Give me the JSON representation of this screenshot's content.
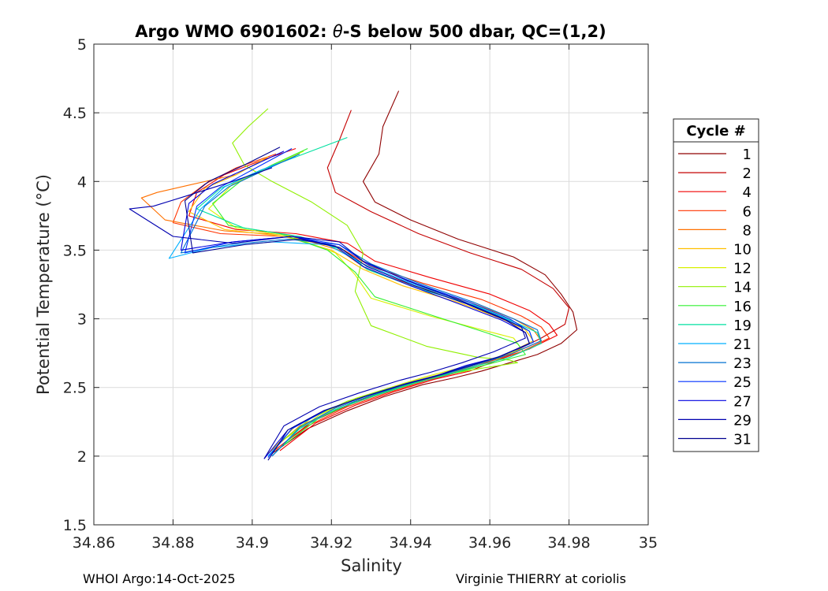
{
  "chart_data": {
    "type": "line",
    "title_prefix": "Argo WMO 6901602: ",
    "title_symbol": "θ",
    "title_suffix": "-S below 500 dbar,  QC=(1,2)",
    "xlabel": "Salinity",
    "ylabel": "Potential Temperature (°C)",
    "xlim": [
      34.86,
      35.0
    ],
    "ylim": [
      1.5,
      5.0
    ],
    "xticks": [
      "34.86",
      "34.88",
      "34.9",
      "34.92",
      "34.94",
      "34.96",
      "34.98",
      "35"
    ],
    "yticks": [
      "1.5",
      "2",
      "2.5",
      "3",
      "3.5",
      "4",
      "4.5",
      "5"
    ],
    "grid": true,
    "legend_title": "Cycle #",
    "legend_position": "right",
    "series": [
      {
        "name": "1",
        "color": "#8f0000",
        "x": [
          34.937,
          34.933,
          34.932,
          34.928,
          34.931,
          34.94,
          34.952,
          34.966,
          34.974,
          34.978,
          34.981,
          34.982,
          34.978,
          34.972,
          34.965,
          34.958,
          34.951,
          34.943,
          34.933,
          34.924,
          34.914,
          34.905
        ],
        "y": [
          4.66,
          4.4,
          4.2,
          4.0,
          3.85,
          3.72,
          3.58,
          3.45,
          3.32,
          3.18,
          3.05,
          2.92,
          2.82,
          2.74,
          2.68,
          2.62,
          2.57,
          2.52,
          2.43,
          2.33,
          2.2,
          2.02
        ]
      },
      {
        "name": "2",
        "color": "#c40000",
        "x": [
          34.925,
          34.922,
          34.919,
          34.921,
          34.93,
          34.942,
          34.955,
          34.968,
          34.976,
          34.98,
          34.979,
          34.973,
          34.966,
          34.959,
          34.952,
          34.944,
          34.934,
          34.925,
          34.915,
          34.906
        ],
        "y": [
          4.52,
          4.3,
          4.1,
          3.92,
          3.78,
          3.62,
          3.48,
          3.36,
          3.22,
          3.08,
          2.96,
          2.86,
          2.76,
          2.68,
          2.61,
          2.56,
          2.48,
          2.38,
          2.25,
          2.05
        ]
      },
      {
        "name": "4",
        "color": "#f00000",
        "x": [
          34.911,
          34.902,
          34.893,
          34.886,
          34.884,
          34.896,
          34.911,
          34.924,
          34.931,
          34.945,
          34.96,
          34.97,
          34.975,
          34.977,
          34.97,
          34.962,
          34.955,
          34.946,
          34.936,
          34.926,
          34.916,
          34.907
        ],
        "y": [
          4.24,
          4.15,
          4.05,
          3.92,
          3.75,
          3.65,
          3.62,
          3.55,
          3.42,
          3.3,
          3.18,
          3.06,
          2.96,
          2.88,
          2.78,
          2.7,
          2.62,
          2.56,
          2.47,
          2.37,
          2.24,
          2.04
        ]
      },
      {
        "name": "6",
        "color": "#ff3300",
        "x": [
          34.906,
          34.896,
          34.888,
          34.882,
          34.88,
          34.892,
          34.908,
          34.922,
          34.93,
          34.943,
          34.958,
          34.968,
          34.973,
          34.975,
          34.968,
          34.96,
          34.952,
          34.944,
          34.934,
          34.924,
          34.914,
          34.905
        ],
        "y": [
          4.2,
          4.1,
          3.98,
          3.85,
          3.7,
          3.62,
          3.6,
          3.52,
          3.38,
          3.26,
          3.14,
          3.02,
          2.94,
          2.86,
          2.76,
          2.69,
          2.61,
          2.55,
          2.46,
          2.36,
          2.22,
          2.03
        ]
      },
      {
        "name": "8",
        "color": "#ff7000",
        "x": [
          34.896,
          34.885,
          34.876,
          34.872,
          34.878,
          34.893,
          34.909,
          34.922,
          34.929,
          34.941,
          34.955,
          34.966,
          34.971,
          34.973,
          34.966,
          34.958,
          34.95,
          34.942,
          34.932,
          34.922,
          34.912,
          34.904
        ],
        "y": [
          4.05,
          3.98,
          3.92,
          3.88,
          3.72,
          3.64,
          3.61,
          3.5,
          3.36,
          3.24,
          3.12,
          3.0,
          2.92,
          2.84,
          2.75,
          2.68,
          2.6,
          2.54,
          2.45,
          2.35,
          2.22,
          2.02
        ]
      },
      {
        "name": "10",
        "color": "#ffc000",
        "x": [
          34.904,
          34.896,
          34.888,
          34.884,
          34.893,
          34.908,
          34.92,
          34.928,
          34.938,
          34.952,
          34.963,
          34.969,
          34.971,
          34.964,
          34.956,
          34.948,
          34.94,
          34.93,
          34.92,
          34.911,
          34.904
        ],
        "y": [
          4.18,
          4.05,
          3.95,
          3.78,
          3.65,
          3.6,
          3.5,
          3.36,
          3.24,
          3.12,
          3.0,
          2.92,
          2.84,
          2.74,
          2.67,
          2.6,
          2.54,
          2.45,
          2.35,
          2.22,
          2.02
        ]
      },
      {
        "name": "12",
        "color": "#d8f000",
        "x": [
          34.913,
          34.904,
          34.895,
          34.889,
          34.896,
          34.91,
          34.921,
          34.926,
          34.93,
          34.945,
          34.958,
          34.966,
          34.968,
          34.96,
          34.952,
          34.944,
          34.936,
          34.926,
          34.917,
          34.908
        ],
        "y": [
          4.22,
          4.1,
          3.98,
          3.8,
          3.66,
          3.6,
          3.48,
          3.32,
          3.15,
          3.02,
          2.92,
          2.86,
          2.78,
          2.7,
          2.64,
          2.58,
          2.51,
          2.42,
          2.3,
          2.12
        ]
      },
      {
        "name": "14",
        "color": "#90f000",
        "x": [
          34.904,
          34.899,
          34.895,
          34.898,
          34.905,
          34.915,
          34.924,
          34.928,
          34.926,
          34.93,
          34.944,
          34.957,
          34.965,
          34.967,
          34.958,
          34.95,
          34.942,
          34.934,
          34.924,
          34.915,
          34.907
        ],
        "y": [
          4.53,
          4.4,
          4.28,
          4.12,
          4.0,
          3.85,
          3.68,
          3.48,
          3.2,
          2.95,
          2.8,
          2.72,
          2.7,
          2.68,
          2.64,
          2.6,
          2.55,
          2.49,
          2.4,
          2.28,
          2.1
        ]
      },
      {
        "name": "16",
        "color": "#30f030",
        "x": [
          34.914,
          34.905,
          34.897,
          34.89,
          34.894,
          34.907,
          34.919,
          34.926,
          34.931,
          34.946,
          34.959,
          34.967,
          34.969,
          34.961,
          34.953,
          34.945,
          34.937,
          34.927,
          34.917,
          34.908
        ],
        "y": [
          4.24,
          4.12,
          4.0,
          3.84,
          3.68,
          3.62,
          3.5,
          3.34,
          3.16,
          3.02,
          2.9,
          2.82,
          2.74,
          2.68,
          2.62,
          2.57,
          2.5,
          2.41,
          2.28,
          2.08
        ]
      },
      {
        "name": "19",
        "color": "#00e0a0",
        "x": [
          34.924,
          34.913,
          34.902,
          34.892,
          34.886,
          34.898,
          34.912,
          34.923,
          34.929,
          34.942,
          34.956,
          34.966,
          34.972,
          34.973,
          34.965,
          34.957,
          34.949,
          34.941,
          34.931,
          34.921,
          34.912,
          34.905
        ],
        "y": [
          4.32,
          4.2,
          4.08,
          3.95,
          3.8,
          3.66,
          3.6,
          3.5,
          3.36,
          3.22,
          3.1,
          2.98,
          2.9,
          2.82,
          2.72,
          2.66,
          2.59,
          2.53,
          2.44,
          2.34,
          2.2,
          2.0
        ]
      },
      {
        "name": "21",
        "color": "#00b0ff",
        "x": [
          34.911,
          34.902,
          34.893,
          34.887,
          34.879,
          34.89,
          34.905,
          34.919,
          34.928,
          34.94,
          34.954,
          34.964,
          34.97,
          34.971,
          34.963,
          34.955,
          34.947,
          34.939,
          34.929,
          34.919,
          34.91,
          34.904
        ],
        "y": [
          4.18,
          4.08,
          3.96,
          3.8,
          3.44,
          3.52,
          3.56,
          3.54,
          3.4,
          3.26,
          3.12,
          3.0,
          2.91,
          2.83,
          2.73,
          2.66,
          2.59,
          2.53,
          2.44,
          2.34,
          2.2,
          2.0
        ]
      },
      {
        "name": "23",
        "color": "#0070d0",
        "x": [
          34.912,
          34.903,
          34.894,
          34.888,
          34.882,
          34.894,
          34.909,
          34.922,
          34.93,
          34.942,
          34.956,
          34.966,
          34.972,
          34.973,
          34.965,
          34.957,
          34.949,
          34.941,
          34.931,
          34.921,
          34.912,
          34.905
        ],
        "y": [
          4.2,
          4.08,
          3.96,
          3.82,
          3.48,
          3.54,
          3.58,
          3.54,
          3.4,
          3.26,
          3.12,
          3.0,
          2.92,
          2.84,
          2.74,
          2.67,
          2.6,
          2.54,
          2.45,
          2.35,
          2.21,
          2.0
        ]
      },
      {
        "name": "25",
        "color": "#0030ff",
        "x": [
          34.91,
          34.901,
          34.892,
          34.886,
          34.883,
          34.895,
          34.91,
          34.922,
          34.929,
          34.942,
          34.955,
          34.965,
          34.97,
          34.971,
          34.963,
          34.955,
          34.947,
          34.939,
          34.929,
          34.919,
          34.91,
          34.904
        ],
        "y": [
          4.24,
          4.1,
          3.96,
          3.82,
          3.48,
          3.56,
          3.6,
          3.54,
          3.4,
          3.25,
          3.12,
          3.0,
          2.91,
          2.83,
          2.73,
          2.66,
          2.59,
          2.53,
          2.44,
          2.34,
          2.2,
          1.99
        ]
      },
      {
        "name": "27",
        "color": "#0000e0",
        "x": [
          34.908,
          34.899,
          34.89,
          34.884,
          34.882,
          34.895,
          34.91,
          34.921,
          34.928,
          34.94,
          34.953,
          34.963,
          34.969,
          34.97,
          34.962,
          34.954,
          34.946,
          34.938,
          34.928,
          34.918,
          34.909,
          34.903
        ],
        "y": [
          4.22,
          4.1,
          3.98,
          3.84,
          3.5,
          3.56,
          3.6,
          3.53,
          3.38,
          3.24,
          3.1,
          2.99,
          2.9,
          2.82,
          2.72,
          2.66,
          2.58,
          2.52,
          2.43,
          2.33,
          2.19,
          1.98
        ]
      },
      {
        "name": "29",
        "color": "#0000b0",
        "x": [
          34.905,
          34.895,
          34.884,
          34.875,
          34.869,
          34.88,
          34.895,
          34.91,
          34.922,
          34.928,
          34.939,
          34.952,
          34.962,
          34.968,
          34.969,
          34.961,
          34.953,
          34.945,
          34.937,
          34.927,
          34.917,
          34.908,
          34.903
        ],
        "y": [
          4.1,
          4.0,
          3.9,
          3.82,
          3.8,
          3.6,
          3.55,
          3.6,
          3.56,
          3.42,
          3.28,
          3.14,
          3.02,
          2.94,
          2.86,
          2.76,
          2.68,
          2.61,
          2.55,
          2.46,
          2.36,
          2.22,
          1.98
        ]
      },
      {
        "name": "31",
        "color": "#000090",
        "x": [
          34.907,
          34.898,
          34.889,
          34.883,
          34.885,
          34.898,
          34.912,
          34.922,
          34.929,
          34.941,
          34.954,
          34.964,
          34.969,
          34.97,
          34.962,
          34.954,
          34.946,
          34.938,
          34.928,
          34.918,
          34.909,
          34.904
        ],
        "y": [
          4.25,
          4.12,
          4.0,
          3.86,
          3.48,
          3.54,
          3.58,
          3.52,
          3.38,
          3.24,
          3.11,
          2.99,
          2.9,
          2.82,
          2.72,
          2.65,
          2.58,
          2.52,
          2.43,
          2.33,
          2.19,
          1.97
        ]
      }
    ]
  },
  "footer": {
    "left": "WHOI Argo:14-Oct-2025",
    "right": "Virginie THIERRY at coriolis"
  }
}
